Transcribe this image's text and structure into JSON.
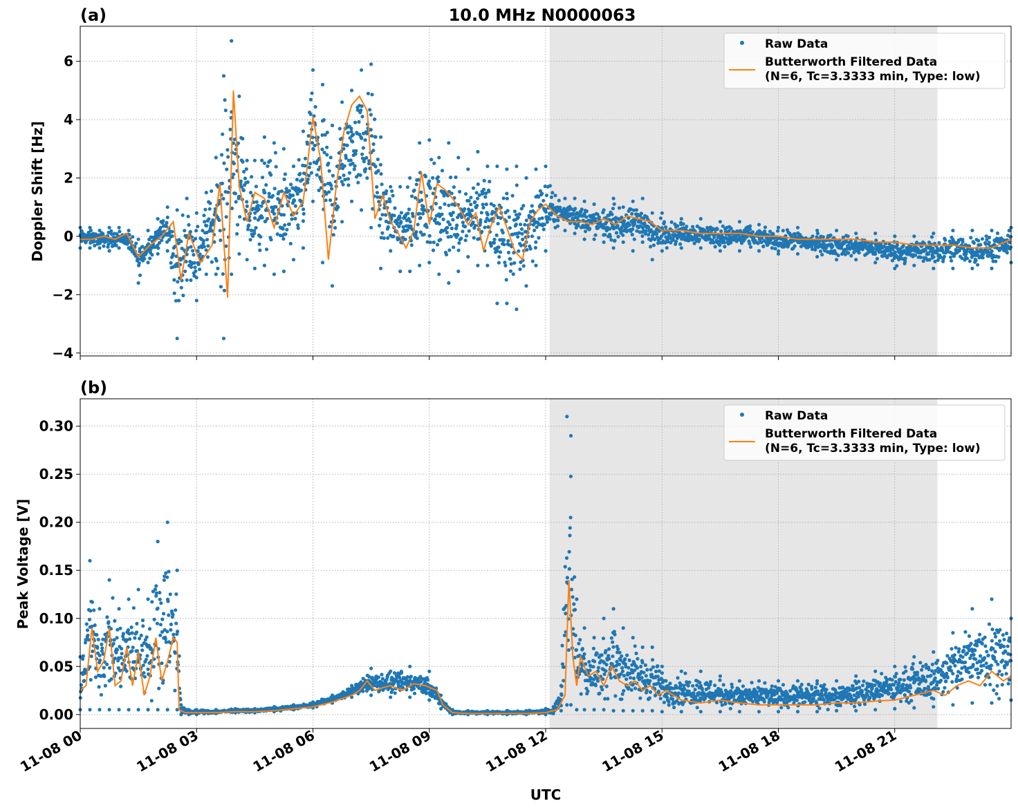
{
  "figure_title": "10.0 MHz N0000063",
  "xlabel": "UTC",
  "x_ticks": [
    "11-08 00",
    "11-08 03",
    "11-08 06",
    "11-08 09",
    "11-08 12",
    "11-08 15",
    "11-08 18",
    "11-08 21"
  ],
  "x_tick_hours": [
    0,
    3,
    6,
    9,
    12,
    15,
    18,
    21
  ],
  "colors": {
    "raw": "#1f77b4",
    "filtered": "#ff7f0e",
    "shade": "#e6e6e6",
    "grid": "#b0b0b0"
  },
  "legend": {
    "raw_label": "Raw Data",
    "filtered_line1": "Butterworth Filtered Data",
    "filtered_line2": "(N=6, Tc=3.3333 min, Type: low)",
    "placement": "top-right"
  },
  "chart_data": [
    {
      "type": "scatter",
      "panel_label": "(a)",
      "ylabel": "Doppler Shift [Hz]",
      "xlim_hours": [
        0,
        24
      ],
      "ylim": [
        -4.1,
        7.2
      ],
      "y_ticks": [
        -4,
        -2,
        0,
        2,
        4,
        6
      ],
      "y_tick_labels": [
        "−4",
        "−2",
        "0",
        "2",
        "4",
        "6"
      ],
      "shaded_span_hours": [
        12.1,
        22.1
      ],
      "grid": true,
      "series": [
        {
          "name": "Raw Data",
          "kind": "points",
          "x_hours": [
            0,
            0.25,
            0.5,
            0.75,
            1,
            1.25,
            1.5,
            1.75,
            2,
            2.25,
            2.5,
            2.75,
            3,
            3.25,
            3.5,
            3.7,
            3.9,
            4.1,
            4.3,
            4.5,
            4.75,
            5,
            5.25,
            5.5,
            5.75,
            6,
            6.25,
            6.5,
            6.75,
            7,
            7.25,
            7.5,
            7.75,
            8,
            8.25,
            8.5,
            8.75,
            9,
            9.25,
            9.5,
            9.75,
            10,
            10.25,
            10.5,
            10.75,
            11,
            11.25,
            11.5,
            11.75,
            12,
            12.25,
            12.5,
            12.75,
            13,
            13.25,
            13.5,
            13.75,
            14,
            14.25,
            14.5,
            14.75,
            15,
            15.5,
            16,
            16.5,
            17,
            17.5,
            18,
            18.5,
            19,
            19.5,
            20,
            20.5,
            21,
            21.5,
            22,
            22.5,
            23,
            23.5,
            24
          ],
          "y_max": [
            0.3,
            0.3,
            0.2,
            0.3,
            0.3,
            0.2,
            -0.1,
            0.2,
            0.6,
            1,
            0.9,
            1.3,
            0.8,
            1.5,
            2.7,
            5.5,
            6.7,
            4.8,
            2.6,
            2.6,
            3.4,
            3.2,
            3,
            2.4,
            3.6,
            5.7,
            5.2,
            3.8,
            4.6,
            5,
            5.7,
            5.9,
            3.4,
            1.7,
            1.7,
            2,
            3.2,
            3.3,
            2.7,
            3.2,
            2.7,
            2.3,
            2.9,
            2.4,
            2.4,
            2.3,
            2.4,
            2,
            2.3,
            2.4,
            1.4,
            1.3,
            1.3,
            1.2,
            1.1,
            0.9,
            1.3,
            1,
            1.2,
            1.3,
            0.8,
            0.8,
            0.6,
            0.6,
            0.5,
            0.5,
            0.4,
            0.3,
            0.3,
            0.2,
            0.2,
            0.1,
            0.1,
            0,
            0,
            0.1,
            0.2,
            0.2,
            0.2,
            0.3
          ],
          "y_min": [
            -0.4,
            -0.4,
            -0.4,
            -0.5,
            -0.4,
            -0.4,
            -1.6,
            -0.9,
            -0.6,
            -0.5,
            -3.5,
            -1.5,
            -2.2,
            -1.3,
            -1.3,
            -3.5,
            -1.3,
            -0.6,
            -0.8,
            -1.1,
            -1,
            -1.3,
            -1.2,
            -0.8,
            -0.4,
            1.2,
            -0.9,
            -1.7,
            0.5,
            1.2,
            0.9,
            0.3,
            -1.1,
            -0.5,
            -1.2,
            -1.2,
            -1,
            -0.9,
            -1.3,
            -1.6,
            -1.2,
            -0.7,
            -1,
            -1,
            -2.3,
            -2.3,
            -2.5,
            -1.7,
            -1,
            -0.5,
            0.3,
            0.2,
            0.1,
            -0.1,
            -0.1,
            -0.2,
            -0.4,
            -0.2,
            -0.5,
            -0.2,
            -0.8,
            -0.5,
            -0.4,
            -0.4,
            -0.5,
            -0.5,
            -0.5,
            -0.6,
            -0.6,
            -0.7,
            -0.8,
            -0.8,
            -0.9,
            -1.1,
            -1,
            -1.1,
            -1.1,
            -1.1,
            -1.1,
            -0.9
          ]
        },
        {
          "name": "Butterworth Filtered Data (N=6, Tc=3.3333 min, Type: low)",
          "kind": "line",
          "x_hours": [
            0,
            0.3,
            0.6,
            0.9,
            1.2,
            1.5,
            1.8,
            2.1,
            2.4,
            2.6,
            2.8,
            3.1,
            3.4,
            3.6,
            3.8,
            3.95,
            4.1,
            4.3,
            4.5,
            4.75,
            5,
            5.25,
            5.5,
            5.75,
            6,
            6.2,
            6.4,
            6.6,
            6.8,
            7,
            7.2,
            7.4,
            7.6,
            7.8,
            8,
            8.2,
            8.4,
            8.6,
            8.8,
            9,
            9.2,
            9.4,
            9.6,
            9.8,
            10,
            10.2,
            10.4,
            10.6,
            10.8,
            11,
            11.2,
            11.4,
            11.6,
            11.8,
            12,
            12.3,
            12.6,
            12.9,
            13.2,
            13.5,
            13.8,
            14.1,
            14.4,
            14.7,
            15,
            15.5,
            16,
            16.5,
            17,
            17.5,
            18,
            18.5,
            19,
            19.5,
            20,
            20.5,
            21,
            21.5,
            22,
            22.5,
            23,
            23.5,
            24
          ],
          "y": [
            -0.1,
            -0.1,
            0,
            -0.1,
            0.1,
            -0.7,
            -0.3,
            0,
            0.5,
            -1.5,
            0.1,
            -0.9,
            -0.3,
            1.8,
            -2.1,
            5,
            1.7,
            0.5,
            1.5,
            1.3,
            0.3,
            1.5,
            0.7,
            1.2,
            4.1,
            2.6,
            -0.8,
            1.7,
            3.6,
            4.5,
            4.8,
            4.3,
            0.6,
            1.4,
            0.5,
            0.1,
            -0.4,
            0.2,
            2.2,
            0.4,
            1.8,
            1.6,
            1.3,
            0.9,
            0.4,
            0.8,
            -0.5,
            0.4,
            1,
            0.3,
            -0.5,
            -0.8,
            0.5,
            0.9,
            1.1,
            0.7,
            0.5,
            0.5,
            0.4,
            0.6,
            0.4,
            0.7,
            0.6,
            0.5,
            0.2,
            0.2,
            0.1,
            0.1,
            0.1,
            0,
            0,
            -0.1,
            -0.1,
            -0.1,
            -0.1,
            -0.2,
            -0.2,
            -0.3,
            -0.3,
            -0.3,
            -0.4,
            -0.4,
            -0.1
          ]
        }
      ]
    },
    {
      "type": "scatter",
      "panel_label": "(b)",
      "ylabel": "Peak Voltage [V]",
      "xlim_hours": [
        0,
        24
      ],
      "ylim": [
        -0.0145,
        0.3285
      ],
      "y_ticks": [
        0,
        0.05,
        0.1,
        0.15,
        0.2,
        0.25,
        0.3
      ],
      "y_tick_labels": [
        "0.00",
        "0.05",
        "0.10",
        "0.15",
        "0.20",
        "0.25",
        "0.30"
      ],
      "shaded_span_hours": [
        12.1,
        22.1
      ],
      "grid": true,
      "series": [
        {
          "name": "Raw Data",
          "kind": "points",
          "x_hours": [
            0,
            0.25,
            0.5,
            0.75,
            1,
            1.25,
            1.5,
            1.75,
            2,
            2.25,
            2.5,
            2.6,
            2.8,
            3,
            3.5,
            4,
            4.5,
            5,
            5.5,
            6,
            6.5,
            7,
            7.5,
            8,
            8.5,
            9,
            9.3,
            9.6,
            10,
            10.5,
            11,
            11.5,
            12,
            12.2,
            12.4,
            12.55,
            12.65,
            12.8,
            13,
            13.25,
            13.5,
            13.75,
            14,
            14.25,
            14.5,
            14.75,
            15,
            15.5,
            16,
            16.5,
            17,
            17.5,
            18,
            18.5,
            19,
            19.5,
            20,
            20.5,
            21,
            21.5,
            22,
            22.5,
            23,
            23.5,
            24
          ],
          "y_max": [
            0.06,
            0.16,
            0.11,
            0.14,
            0.11,
            0.12,
            0.13,
            0.12,
            0.18,
            0.2,
            0.15,
            0.01,
            0.005,
            0.005,
            0.005,
            0.006,
            0.006,
            0.008,
            0.01,
            0.013,
            0.02,
            0.03,
            0.048,
            0.045,
            0.05,
            0.045,
            0.02,
            0.005,
            0.004,
            0.004,
            0.004,
            0.004,
            0.006,
            0.008,
            0.03,
            0.31,
            0.29,
            0.12,
            0.09,
            0.08,
            0.1,
            0.11,
            0.09,
            0.08,
            0.07,
            0.07,
            0.05,
            0.045,
            0.045,
            0.04,
            0.035,
            0.035,
            0.035,
            0.035,
            0.035,
            0.035,
            0.04,
            0.045,
            0.05,
            0.06,
            0.065,
            0.085,
            0.11,
            0.12,
            0.1
          ],
          "y_min": [
            0.005,
            0.005,
            0.005,
            0.005,
            0.005,
            0.005,
            0.005,
            0.005,
            0.005,
            0.005,
            0.005,
            0,
            0,
            0,
            0.001,
            0.002,
            0.002,
            0.003,
            0.005,
            0.007,
            0.012,
            0.018,
            0.02,
            0.018,
            0.018,
            0.015,
            0.006,
            0,
            0,
            0,
            0,
            0,
            0,
            0.001,
            0.004,
            0.01,
            0.01,
            0.005,
            0.005,
            0.005,
            0.005,
            0.004,
            0.004,
            0.004,
            0.004,
            0.004,
            0.003,
            0.003,
            0.003,
            0.003,
            0.003,
            0.003,
            0.003,
            0.003,
            0.003,
            0.004,
            0.004,
            0.005,
            0.006,
            0.007,
            0.008,
            0.01,
            0.012,
            0.012,
            0.015
          ]
        },
        {
          "name": "Butterworth Filtered Data (N=6, Tc=3.3333 min, Type: low)",
          "kind": "line",
          "x_hours": [
            0,
            0.15,
            0.3,
            0.45,
            0.6,
            0.75,
            0.9,
            1.05,
            1.2,
            1.35,
            1.5,
            1.65,
            1.8,
            1.95,
            2.1,
            2.25,
            2.4,
            2.5,
            2.55,
            2.7,
            3,
            3.5,
            4,
            4.5,
            5,
            5.5,
            6,
            6.5,
            7,
            7.2,
            7.4,
            7.6,
            7.8,
            8,
            8.3,
            8.6,
            8.9,
            9.2,
            9.35,
            9.6,
            10,
            10.5,
            11,
            11.5,
            12,
            12.3,
            12.5,
            12.6,
            12.7,
            12.8,
            12.9,
            13.1,
            13.3,
            13.5,
            13.7,
            13.9,
            14.1,
            14.3,
            14.5,
            14.7,
            14.9,
            15.1,
            15.5,
            16,
            16.5,
            17,
            17.5,
            18,
            18.5,
            19,
            19.5,
            20,
            20.5,
            21,
            21.5,
            22,
            22.3,
            22.6,
            22.9,
            23.2,
            23.5,
            23.8,
            24
          ],
          "y": [
            0.025,
            0.03,
            0.09,
            0.045,
            0.055,
            0.09,
            0.03,
            0.035,
            0.07,
            0.03,
            0.065,
            0.02,
            0.04,
            0.08,
            0.035,
            0.055,
            0.08,
            0.075,
            0.005,
            0.002,
            0.002,
            0.002,
            0.003,
            0.003,
            0.004,
            0.006,
            0.008,
            0.013,
            0.02,
            0.025,
            0.035,
            0.025,
            0.028,
            0.03,
            0.025,
            0.032,
            0.03,
            0.025,
            0.01,
            0.002,
            0.001,
            0.001,
            0.001,
            0.001,
            0.002,
            0.005,
            0.02,
            0.14,
            0.06,
            0.03,
            0.06,
            0.04,
            0.045,
            0.03,
            0.05,
            0.035,
            0.03,
            0.035,
            0.025,
            0.03,
            0.02,
            0.025,
            0.015,
            0.012,
            0.015,
            0.012,
            0.01,
            0.01,
            0.01,
            0.01,
            0.012,
            0.012,
            0.014,
            0.015,
            0.02,
            0.025,
            0.02,
            0.03,
            0.035,
            0.03,
            0.045,
            0.035,
            0.04
          ]
        }
      ]
    }
  ]
}
